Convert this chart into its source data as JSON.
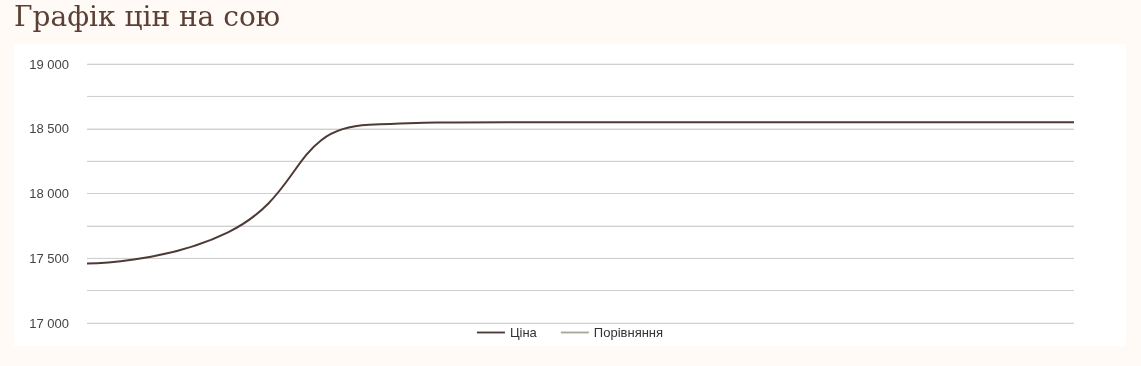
{
  "chart_data": {
    "type": "line",
    "title": "Графік цін на сою",
    "categories": [
      null,
      null,
      null,
      null,
      null,
      null,
      null,
      null
    ],
    "series": [
      {
        "name": "Ціна",
        "color": "#4e3a36",
        "values": [
          17460,
          17700,
          18530,
          18550,
          18550,
          18550,
          18550,
          18550
        ]
      },
      {
        "name": "Порівняння",
        "color": "#a8ab94",
        "values": [
          null,
          null,
          null,
          null,
          null,
          null,
          null,
          null
        ]
      }
    ],
    "ylim": [
      17000,
      19000
    ],
    "yticks": [
      17000,
      {
        "value": 17250,
        "label": null
      },
      17500,
      {
        "value": 17750,
        "label": null
      },
      18000,
      {
        "value": 18250,
        "label": null
      },
      18500,
      {
        "value": 18750,
        "label": null
      },
      19000
    ],
    "grid": "y",
    "legend": "bottom",
    "marker": "none",
    "line_style": "solid"
  }
}
